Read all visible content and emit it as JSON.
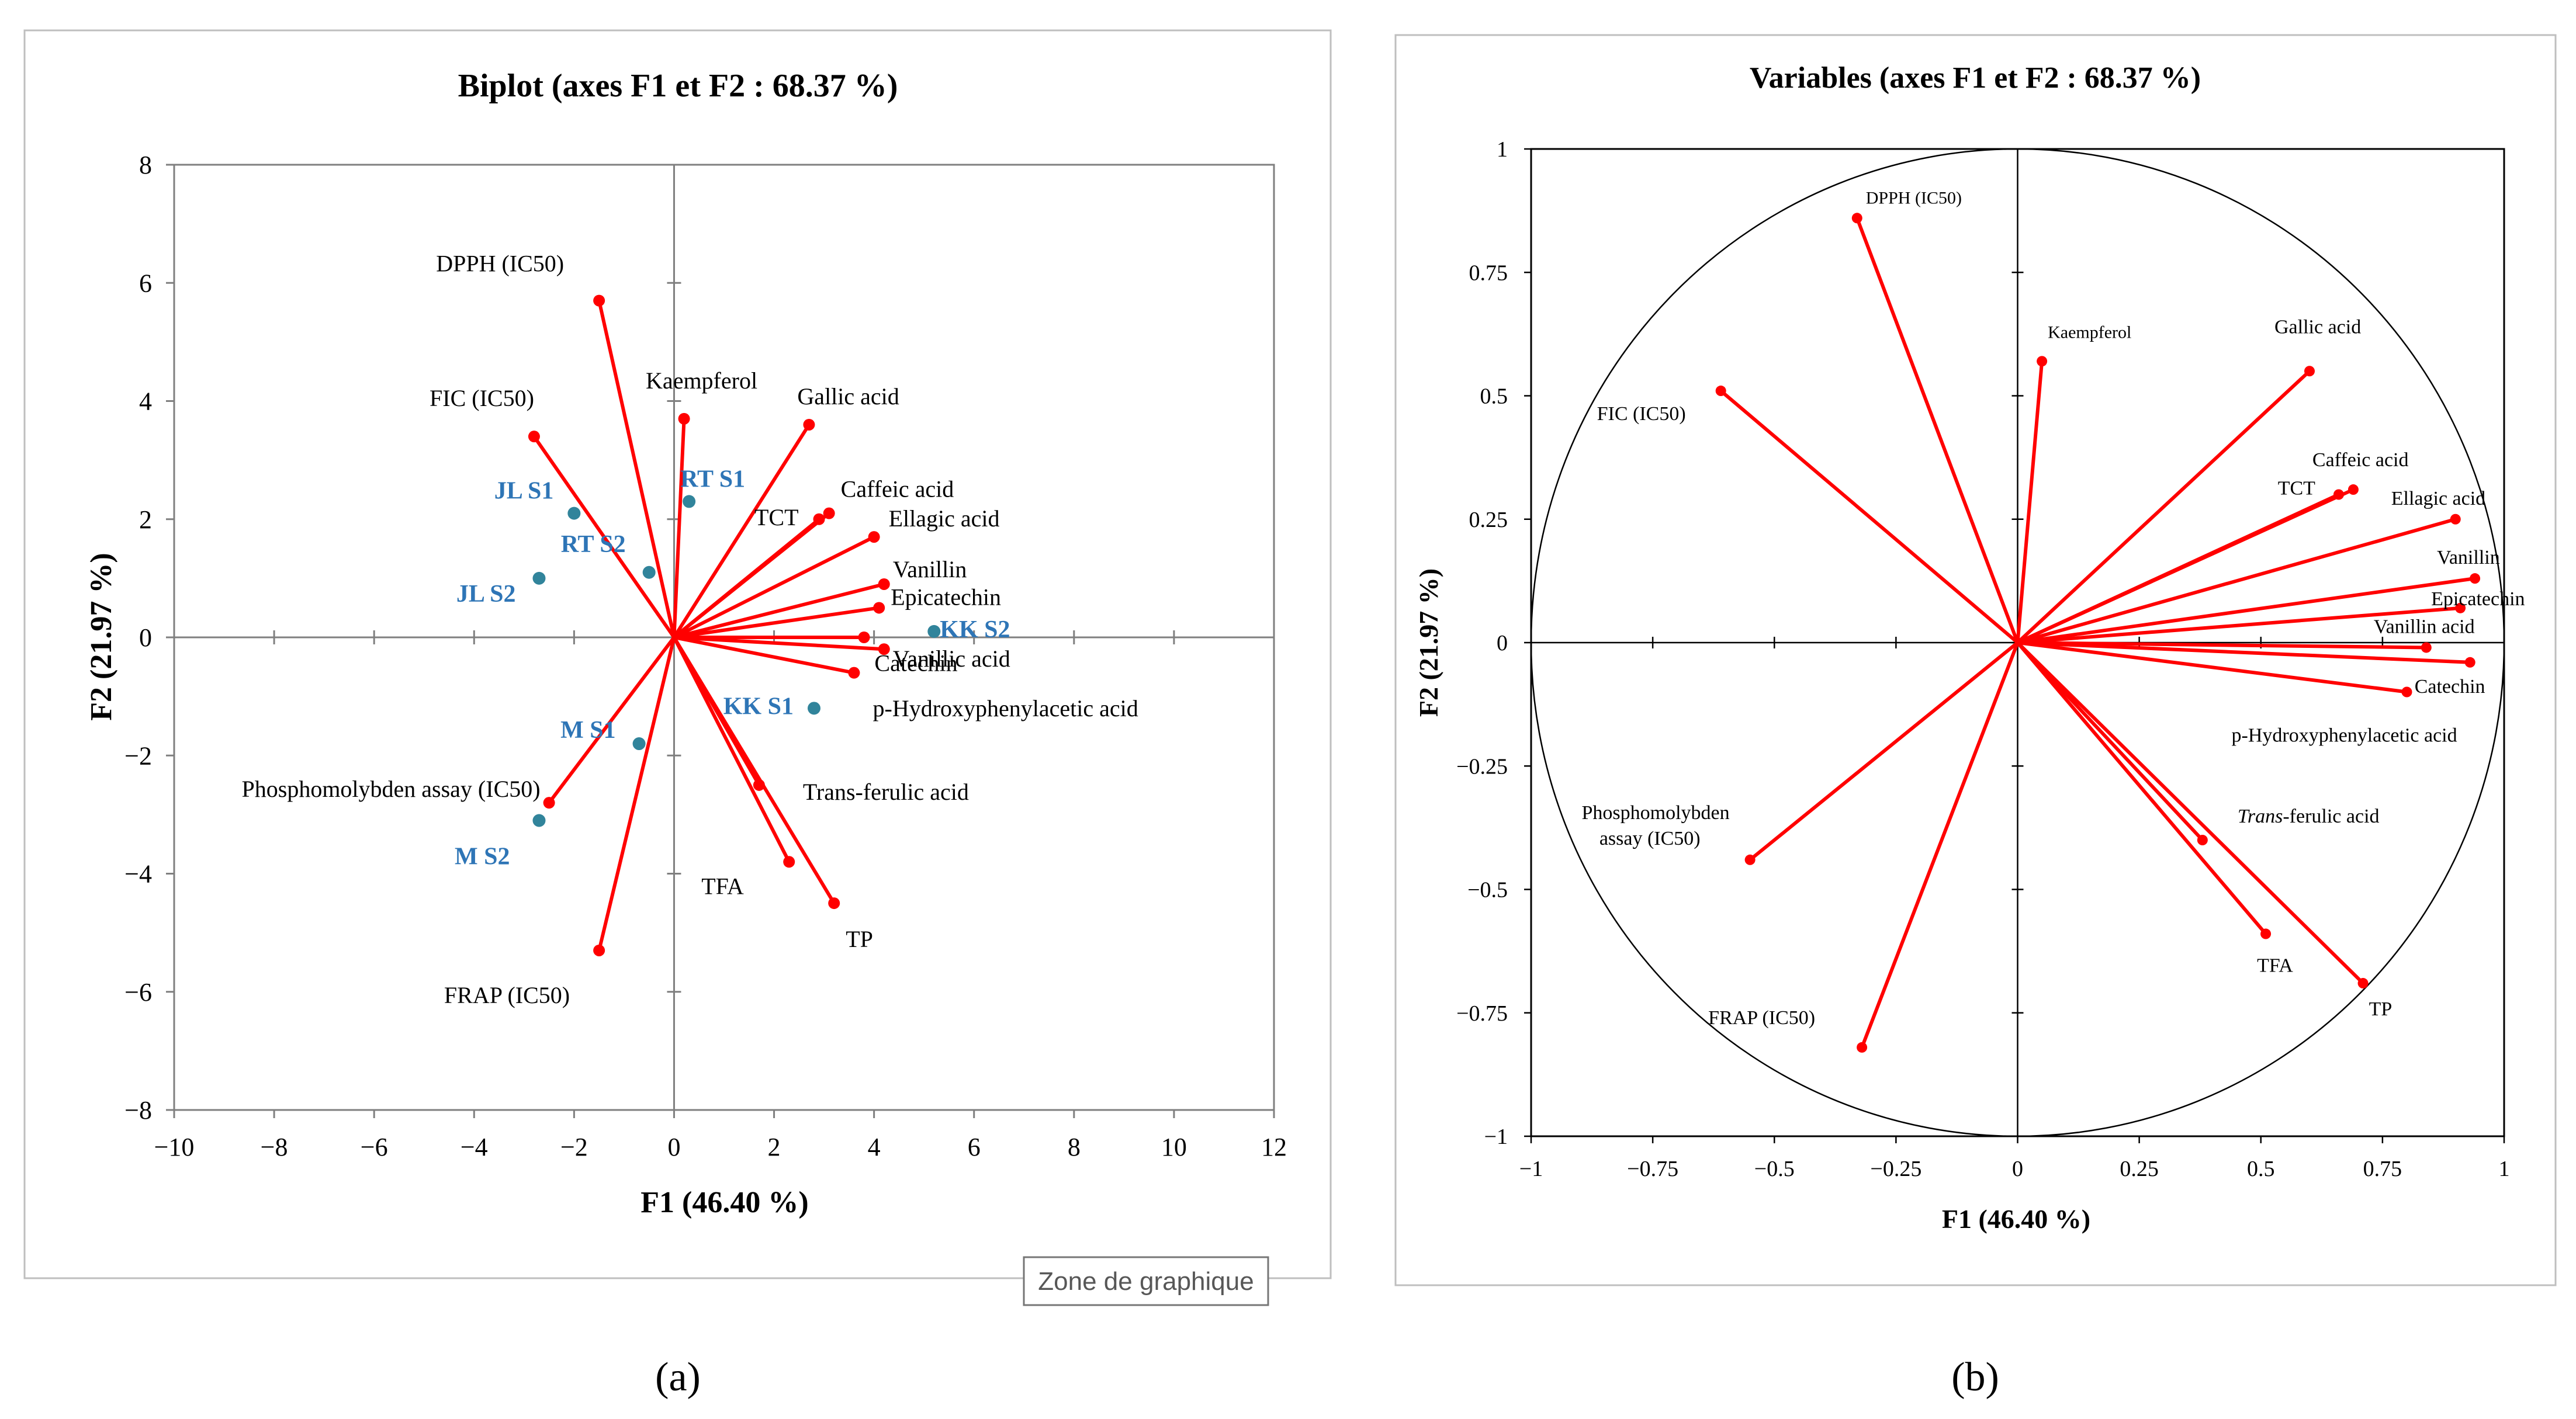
{
  "chart_data": [
    {
      "type": "scatter",
      "panel_label": "(a)",
      "title": "Biplot (axes F1 et F2 : 68.37 %)",
      "xlabel": "F1 (46.40 %)",
      "ylabel": "F2 (21.97 %)",
      "xlim": [
        -10,
        12
      ],
      "ylim": [
        -8,
        8
      ],
      "xticks": [
        "−10",
        "−8",
        "−6",
        "−4",
        "−2",
        "0",
        "2",
        "4",
        "6",
        "8",
        "10",
        "12"
      ],
      "yticks": [
        "8",
        "6",
        "4",
        "2",
        "0",
        "−2",
        "−4",
        "−6",
        "−8"
      ],
      "grid": false,
      "line_color": "#ff0000",
      "point_color": "#31849b",
      "sample_label_color": "#2e75b6",
      "variables": [
        {
          "label": "DPPH (IC50)",
          "x": -1.5,
          "y": 5.7
        },
        {
          "label": "FIC (IC50)",
          "x": -2.8,
          "y": 3.4
        },
        {
          "label": "Kaempferol",
          "x": 0.2,
          "y": 3.7
        },
        {
          "label": "Gallic acid",
          "x": 2.7,
          "y": 3.6
        },
        {
          "label": "TCT",
          "x": 2.9,
          "y": 2.0
        },
        {
          "label": "Caffeic acid",
          "x": 3.1,
          "y": 2.1
        },
        {
          "label": "Ellagic acid",
          "x": 4.0,
          "y": 1.7
        },
        {
          "label": "Vanillin",
          "x": 4.2,
          "y": 0.9
        },
        {
          "label": "Epicatechin",
          "x": 4.1,
          "y": 0.5
        },
        {
          "label": "Vanillic acid",
          "x": 4.2,
          "y": -0.2
        },
        {
          "label": "p-Hydroxyphenylacetic acid",
          "x": 3.8,
          "y": 0.0
        },
        {
          "label": "Catechin",
          "x": 3.6,
          "y": -0.6
        },
        {
          "label": "Trans-ferulic acid",
          "x": 1.7,
          "y": -2.5
        },
        {
          "label": "TFA",
          "x": 2.3,
          "y": -3.8
        },
        {
          "label": "TP",
          "x": 3.2,
          "y": -4.5
        },
        {
          "label": "Phosphomolybden assay (IC50)",
          "x": -2.5,
          "y": -2.8
        },
        {
          "label": "FRAP (IC50)",
          "x": -1.5,
          "y": -5.3
        }
      ],
      "samples": [
        {
          "label": "JL S1",
          "x": -2.0,
          "y": 2.1
        },
        {
          "label": "RT S1",
          "x": 0.3,
          "y": 2.3
        },
        {
          "label": "RT S2",
          "x": -0.5,
          "y": 1.1
        },
        {
          "label": "JL S2",
          "x": -2.7,
          "y": 1.0
        },
        {
          "label": "KK S2",
          "x": 5.2,
          "y": 0.1
        },
        {
          "label": "KK S1",
          "x": 2.8,
          "y": -1.2
        },
        {
          "label": "M S1",
          "x": -0.7,
          "y": -1.8
        },
        {
          "label": "M S2",
          "x": -2.7,
          "y": -3.1
        }
      ]
    },
    {
      "type": "scatter",
      "panel_label": "(b)",
      "title": "Variables (axes F1 et F2 : 68.37 %)",
      "xlabel": "F1 (46.40 %)",
      "ylabel": "F2 (21.97 %)",
      "xlim": [
        -1,
        1
      ],
      "ylim": [
        -1,
        1
      ],
      "xticks": [
        "−1",
        "−0.75",
        "−0.5",
        "−0.25",
        "0",
        "0.25",
        "0.5",
        "0.75",
        "1"
      ],
      "yticks": [
        "1",
        "0.75",
        "0.5",
        "0.25",
        "0",
        "−0.25",
        "−0.5",
        "−0.75",
        "−1"
      ],
      "grid": false,
      "unit_circle": true,
      "line_color": "#ff0000",
      "variables": [
        {
          "label": "DPPH (IC50)",
          "x": -0.33,
          "y": 0.86
        },
        {
          "label": "Kaempferol",
          "x": 0.05,
          "y": 0.57
        },
        {
          "label": "Gallic acid",
          "x": 0.6,
          "y": 0.55
        },
        {
          "label": "FIC (IC50)",
          "x": -0.61,
          "y": 0.51
        },
        {
          "label": "Caffeic acid",
          "x": 0.69,
          "y": 0.31
        },
        {
          "label": "TCT",
          "x": 0.66,
          "y": 0.3
        },
        {
          "label": "Ellagic acid",
          "x": 0.9,
          "y": 0.25
        },
        {
          "label": "Vanillin",
          "x": 0.94,
          "y": 0.13
        },
        {
          "label": "Epicatechin",
          "x": 0.91,
          "y": 0.07
        },
        {
          "label": "Vanillin acid",
          "x": 0.84,
          "y": -0.01
        },
        {
          "label": "Catechin",
          "x": 0.93,
          "y": -0.04
        },
        {
          "label": "p-Hydroxyphenylacetic acid",
          "x": 0.8,
          "y": -0.1
        },
        {
          "label": "Trans-ferulic acid",
          "x": 0.38,
          "y": -0.4
        },
        {
          "label": "TFA",
          "x": 0.51,
          "y": -0.59
        },
        {
          "label": "TP",
          "x": 0.71,
          "y": -0.69
        },
        {
          "label": "Phosphomolybden assay (IC50)",
          "x": -0.55,
          "y": -0.44
        },
        {
          "label": "FRAP (IC50)",
          "x": -0.32,
          "y": -0.82
        }
      ]
    }
  ],
  "tooltip": "Zone de graphique"
}
